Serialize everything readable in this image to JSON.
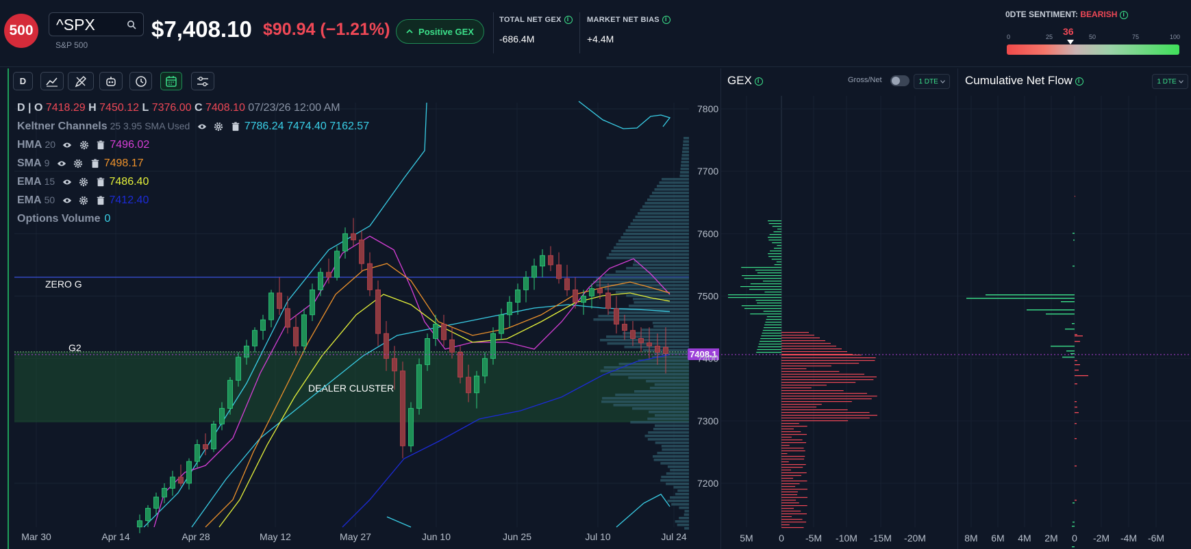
{
  "header": {
    "logo_text": "500",
    "symbol": "^SPX",
    "symbol_name": "S&P 500",
    "price": "$7,408.10",
    "change": "$90.94 (−1.21%)",
    "gex_button": "Positive GEX",
    "total_net_gex_label": "TOTAL NET GEX",
    "total_net_gex_value": "-686.4M",
    "market_net_bias_label": "MARKET NET BIAS",
    "market_net_bias_value": "+4.4M",
    "sentiment_label": "0DTE SENTIMENT:",
    "sentiment_value": "BEARISH",
    "sentiment_score": "36",
    "sentiment_ticks": [
      "0",
      "25",
      "50",
      "75",
      "100"
    ]
  },
  "toolbar": {
    "interval": "D"
  },
  "legend": {
    "interval": "D",
    "o_label": "O",
    "o": "7418.29",
    "h_label": "H",
    "h": "7450.12",
    "l_label": "L",
    "l": "7376.00",
    "c_label": "C",
    "c": "7408.10",
    "datetime": "07/23/26 12:00 AM",
    "indicators": [
      {
        "name": "Keltner Channels",
        "params": "25 3.95 SMA Used",
        "values": "7786.24 7474.40 7162.57",
        "color": "#3ad0e8"
      },
      {
        "name": "HMA",
        "params": "20",
        "values": "7496.02",
        "color": "#d83fd8"
      },
      {
        "name": "SMA",
        "params": "9",
        "values": "7498.17",
        "color": "#f0932b"
      },
      {
        "name": "EMA",
        "params": "15",
        "values": "7486.40",
        "color": "#e6f23a"
      },
      {
        "name": "EMA",
        "params": "50",
        "values": "7412.40",
        "color": "#1c2bd8"
      },
      {
        "name": "Options Volume",
        "params": "",
        "values": "0",
        "color": "#3ad0e8"
      }
    ]
  },
  "chart": {
    "levels": {
      "zero_g": "ZERO G",
      "g2": "G2",
      "dealer_cluster": "DEALER CLUSTER"
    },
    "price_tag": "7408.1",
    "y_ticks": [
      "7800",
      "7700",
      "7600",
      "7500",
      "7400",
      "7300",
      "7200"
    ],
    "x_ticks": [
      "Mar 30",
      "Apr 14",
      "Apr 28",
      "May 12",
      "May 27",
      "Jun 10",
      "Jun 25",
      "Jul 10",
      "Jul 24"
    ]
  },
  "gex_pane": {
    "title": "GEX",
    "toggle_label": "Gross/Net",
    "dte": "1 DTE",
    "x_ticks": [
      "5M",
      "0",
      "-5M",
      "-10M",
      "-15M",
      "-20M"
    ]
  },
  "flow_pane": {
    "title": "Cumulative Net Flow",
    "dte": "1 DTE",
    "x_ticks": [
      "8M",
      "6M",
      "4M",
      "2M",
      "0",
      "-2M",
      "-4M",
      "-6M"
    ]
  },
  "colors": {
    "up": "#2fd07f",
    "down": "#ef4856",
    "accent": "#3ce08a",
    "bg": "#0f1726"
  }
}
